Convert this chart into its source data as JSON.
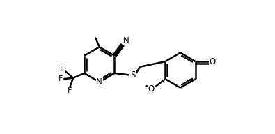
{
  "bg_color": "#ffffff",
  "line_color": "#000000",
  "line_width": 1.8,
  "figsize": [
    3.95,
    1.92
  ],
  "dpi": 100,
  "xlim": [
    0,
    10
  ],
  "ylim": [
    0,
    4.8
  ]
}
